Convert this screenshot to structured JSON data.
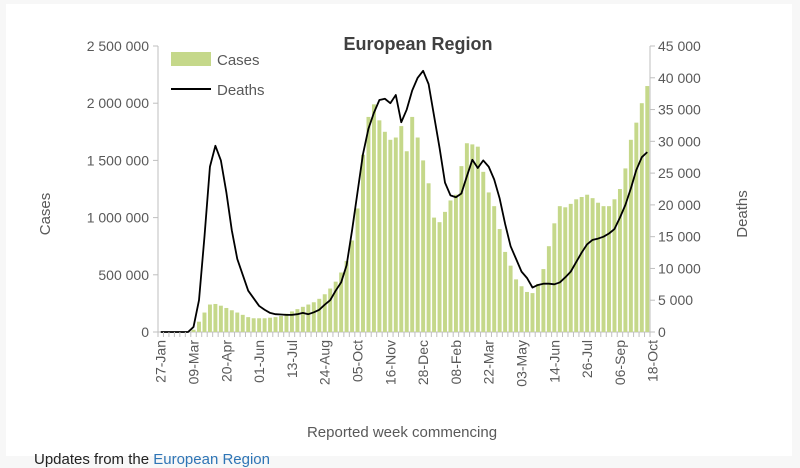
{
  "chart_data": {
    "type": "bar",
    "title": "European Region",
    "xlabel": "Reported week commencing",
    "ylabel_left": "Cases",
    "ylabel_right": "Deaths",
    "ylim_left": [
      0,
      2500000
    ],
    "ylim_right": [
      0,
      45000
    ],
    "yticks_left": [
      "0",
      "500 000",
      "1 000 000",
      "1 500 000",
      "2 000 000",
      "2 500 000"
    ],
    "yticks_right": [
      "0",
      "5 000",
      "10 000",
      "15 000",
      "20 000",
      "25 000",
      "30 000",
      "35 000",
      "40 000",
      "45 000"
    ],
    "x_tick_labels": [
      "27-Jan",
      "09-Mar",
      "20-Apr",
      "01-Jun",
      "13-Jul",
      "24-Aug",
      "05-Oct",
      "16-Nov",
      "28-Dec",
      "08-Feb",
      "22-Mar",
      "03-May",
      "14-Jun",
      "26-Jul",
      "06-Sep",
      "18-Oct"
    ],
    "x_tick_every": 6,
    "first_week": "2020-01-27",
    "legend_position": "top-left",
    "grid": false,
    "series": [
      {
        "name": "Cases",
        "kind": "bar",
        "axis": "left",
        "color": "#c5d88a",
        "values": [
          0,
          0,
          0,
          0,
          0,
          0,
          20000,
          90000,
          170000,
          240000,
          245000,
          230000,
          210000,
          190000,
          170000,
          150000,
          130000,
          120000,
          120000,
          120000,
          125000,
          130000,
          140000,
          160000,
          180000,
          200000,
          220000,
          240000,
          260000,
          290000,
          330000,
          380000,
          440000,
          520000,
          620000,
          800000,
          1080000,
          1550000,
          1880000,
          1990000,
          1850000,
          1750000,
          1680000,
          1700000,
          1800000,
          1580000,
          1880000,
          1700000,
          1500000,
          1300000,
          1000000,
          960000,
          1050000,
          1150000,
          1200000,
          1450000,
          1650000,
          1640000,
          1620000,
          1400000,
          1220000,
          1100000,
          900000,
          700000,
          580000,
          460000,
          400000,
          350000,
          340000,
          420000,
          550000,
          750000,
          950000,
          1100000,
          1090000,
          1120000,
          1160000,
          1180000,
          1200000,
          1170000,
          1130000,
          1100000,
          1100000,
          1160000,
          1250000,
          1430000,
          1680000,
          1830000,
          2000000,
          2150000
        ]
      },
      {
        "name": "Deaths",
        "kind": "line",
        "axis": "right",
        "color": "#000000",
        "values": [
          0,
          0,
          0,
          0,
          0,
          0,
          800,
          5000,
          15000,
          26000,
          29300,
          27000,
          22000,
          16000,
          11500,
          9000,
          6500,
          5300,
          4100,
          3500,
          3000,
          2800,
          2750,
          2700,
          2700,
          2800,
          3000,
          2800,
          3100,
          3500,
          4300,
          5000,
          6500,
          7800,
          10500,
          16000,
          22000,
          28000,
          32000,
          34500,
          36500,
          36700,
          36000,
          37300,
          33000,
          35000,
          38000,
          40000,
          41100,
          39000,
          34000,
          29000,
          23500,
          21500,
          21200,
          21800,
          24500,
          27100,
          25800,
          27000,
          26000,
          24000,
          21000,
          17000,
          13500,
          11500,
          9500,
          8500,
          7000,
          7400,
          7600,
          7600,
          7500,
          7800,
          8600,
          9500,
          11000,
          12500,
          13800,
          14500,
          14700,
          15000,
          15500,
          16200,
          18000,
          20000,
          22600,
          25500,
          27500,
          28300
        ]
      }
    ]
  },
  "footer": {
    "text": "Updates from the ",
    "link": "European Region"
  }
}
